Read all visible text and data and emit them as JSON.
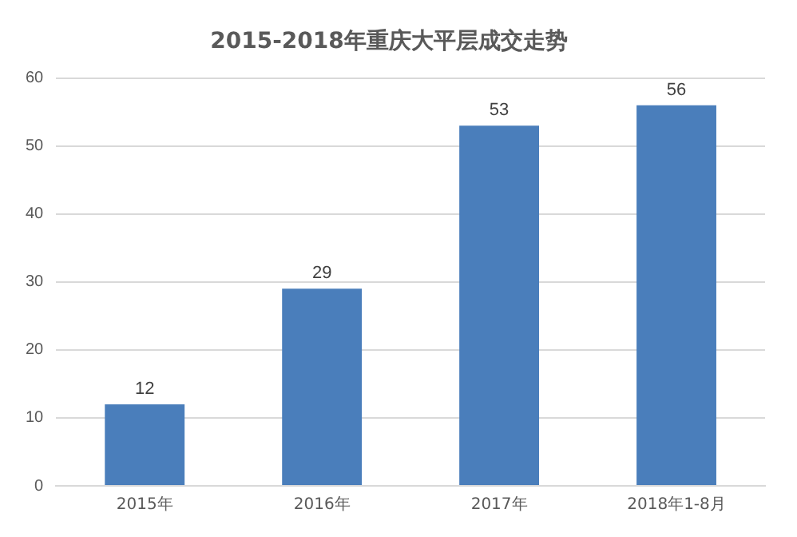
{
  "chart_data": {
    "type": "bar",
    "title": "2015-2018年重庆大平层成交走势",
    "categories": [
      "2015年",
      "2016年",
      "2017年",
      "2018年1-8月"
    ],
    "values": [
      12,
      29,
      53,
      56
    ],
    "color": "#4a7ebb",
    "ylim": [
      0,
      60
    ],
    "yticks": [
      0,
      10,
      20,
      30,
      40,
      50,
      60
    ],
    "grid": "y",
    "data_labels": true,
    "legend": false
  }
}
